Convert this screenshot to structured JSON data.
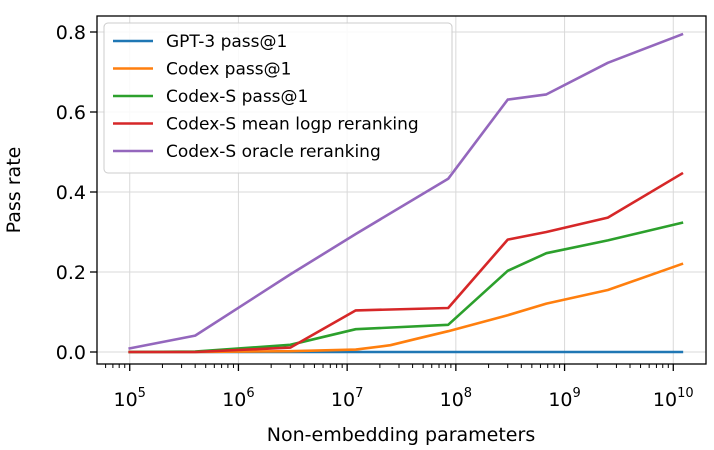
{
  "chart_data": {
    "type": "line",
    "xlabel": "Non-embedding parameters",
    "ylabel": "Pass rate",
    "x_scale": "log",
    "xlim": [
      50000,
      20000000000
    ],
    "ylim": [
      -0.03,
      0.84
    ],
    "grid": true,
    "legend_position": "top-left",
    "x_tick_labels": [
      {
        "base": "10",
        "exp": "5",
        "value": 100000
      },
      {
        "base": "10",
        "exp": "6",
        "value": 1000000
      },
      {
        "base": "10",
        "exp": "7",
        "value": 10000000
      },
      {
        "base": "10",
        "exp": "8",
        "value": 100000000
      },
      {
        "base": "10",
        "exp": "9",
        "value": 1000000000
      },
      {
        "base": "10",
        "exp": "10",
        "value": 10000000000
      }
    ],
    "y_ticks": [
      {
        "label": "0.0",
        "value": 0.0
      },
      {
        "label": "0.2",
        "value": 0.2
      },
      {
        "label": "0.4",
        "value": 0.4
      },
      {
        "label": "0.6",
        "value": 0.6
      },
      {
        "label": "0.8",
        "value": 0.8
      }
    ],
    "series": [
      {
        "name": "GPT-3 pass@1",
        "color": "#1f77b4",
        "x": [
          100000,
          400000,
          3000000,
          12000000,
          85000000,
          300000000,
          680000000,
          2500000000,
          12000000000
        ],
        "y": [
          0.0,
          0.0,
          0.0,
          0.0,
          0.0,
          0.0,
          0.0,
          0.0,
          0.0
        ]
      },
      {
        "name": "Codex pass@1",
        "color": "#ff7f0e",
        "x": [
          100000,
          400000,
          3000000,
          12000000,
          25000000,
          42000000,
          85000000,
          300000000,
          680000000,
          2500000000,
          12000000000
        ],
        "y": [
          0.0,
          0.0,
          0.002,
          0.006,
          0.017,
          0.032,
          0.052,
          0.092,
          0.121,
          0.155,
          0.22
        ]
      },
      {
        "name": "Codex-S pass@1",
        "color": "#2ca02c",
        "x": [
          100000,
          400000,
          3000000,
          12000000,
          85000000,
          300000000,
          680000000,
          2500000000,
          12000000000
        ],
        "y": [
          0.0,
          0.001,
          0.018,
          0.057,
          0.068,
          0.203,
          0.247,
          0.279,
          0.323
        ]
      },
      {
        "name": "Codex-S mean logp reranking",
        "color": "#d62728",
        "x": [
          100000,
          400000,
          3000000,
          12000000,
          85000000,
          300000000,
          680000000,
          2500000000,
          12000000000
        ],
        "y": [
          0.0,
          0.0,
          0.011,
          0.104,
          0.11,
          0.281,
          0.3,
          0.336,
          0.446
        ]
      },
      {
        "name": "Codex-S oracle reranking",
        "color": "#9467bd",
        "x": [
          100000,
          400000,
          3000000,
          12000000,
          85000000,
          300000000,
          680000000,
          2500000000,
          12000000000
        ],
        "y": [
          0.009,
          0.041,
          0.194,
          0.295,
          0.433,
          0.631,
          0.644,
          0.723,
          0.794
        ]
      }
    ]
  }
}
